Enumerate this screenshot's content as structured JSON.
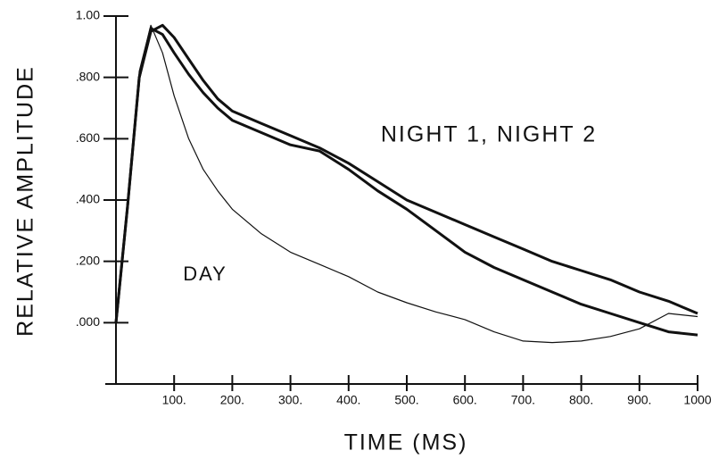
{
  "chart_data": {
    "type": "line",
    "x_label": "TIME (MS)",
    "y_label": "RELATIVE AMPLITUDE",
    "annotations": [
      "NIGHT 1, NIGHT 2",
      "DAY"
    ],
    "x": [
      0,
      20,
      40,
      60,
      80,
      100,
      125,
      150,
      175,
      200,
      250,
      300,
      350,
      400,
      450,
      500,
      550,
      600,
      650,
      700,
      750,
      800,
      850,
      900,
      950,
      1000
    ],
    "series": [
      {
        "color": "#111111",
        "width": 1.2,
        "values": [
          0,
          0.4,
          0.82,
          0.97,
          0.88,
          0.74,
          0.6,
          0.5,
          0.43,
          0.37,
          0.29,
          0.23,
          0.19,
          0.15,
          0.1,
          0.065,
          0.035,
          0.01,
          -0.03,
          -0.06,
          -0.065,
          -0.06,
          -0.045,
          -0.02,
          0.03,
          0.02
        ]
      },
      {
        "color": "#111111",
        "width": 3,
        "values": [
          0,
          0.38,
          0.8,
          0.95,
          0.97,
          0.93,
          0.86,
          0.79,
          0.73,
          0.69,
          0.65,
          0.61,
          0.57,
          0.52,
          0.46,
          0.4,
          0.36,
          0.32,
          0.28,
          0.24,
          0.2,
          0.17,
          0.14,
          0.1,
          0.07,
          0.03
        ]
      },
      {
        "color": "#111111",
        "width": 3,
        "values": [
          0,
          0.38,
          0.8,
          0.96,
          0.94,
          0.88,
          0.81,
          0.75,
          0.7,
          0.66,
          0.62,
          0.58,
          0.56,
          0.5,
          0.43,
          0.37,
          0.3,
          0.23,
          0.18,
          0.14,
          0.1,
          0.06,
          0.03,
          0.0,
          -0.03,
          -0.04
        ]
      }
    ],
    "xlim": [
      0,
      1000
    ],
    "ylim": [
      -0.2,
      1.0
    ],
    "xticks": [
      {
        "value": 100,
        "label": "100."
      },
      {
        "value": 200,
        "label": "200."
      },
      {
        "value": 300,
        "label": "300."
      },
      {
        "value": 400,
        "label": "400."
      },
      {
        "value": 500,
        "label": "500."
      },
      {
        "value": 600,
        "label": "600."
      },
      {
        "value": 700,
        "label": "700."
      },
      {
        "value": 800,
        "label": "800."
      },
      {
        "value": 900,
        "label": "900."
      },
      1000
    ],
    "yticks": [
      {
        "value": 0,
        "label": ".000"
      },
      {
        "value": 0.2,
        "label": ".200"
      },
      {
        "value": 0.4,
        "label": ".400"
      },
      {
        "value": 0.6,
        "label": ".600"
      },
      {
        "value": 0.8,
        "label": ".800"
      },
      {
        "value": 1,
        "label": "1.00"
      }
    ],
    "grid": false
  }
}
